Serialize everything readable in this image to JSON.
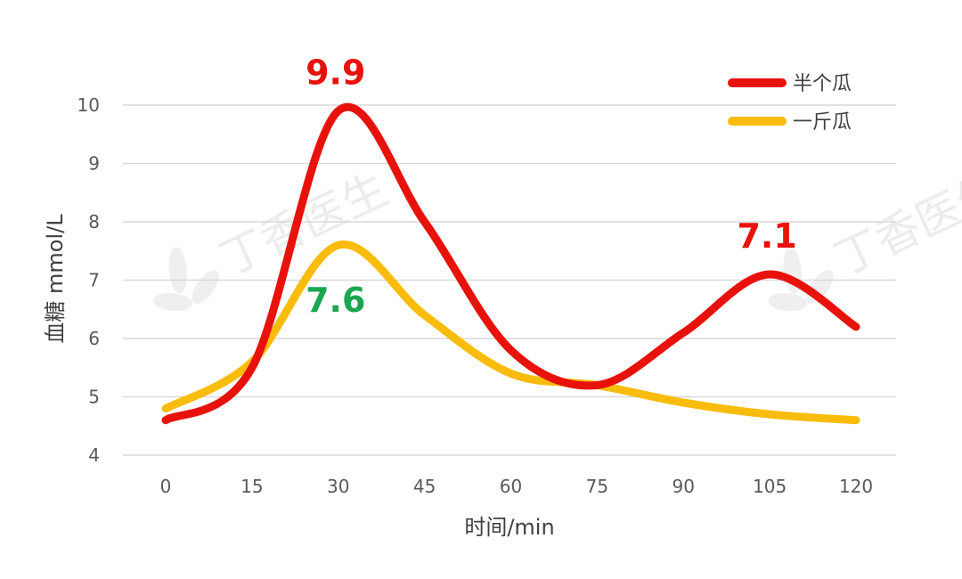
{
  "chart_data": {
    "type": "line",
    "xlabel": "时间/min",
    "ylabel": "血糖 mmol/L",
    "x": [
      0,
      15,
      30,
      45,
      60,
      75,
      90,
      105,
      120
    ],
    "xlim": [
      0,
      120
    ],
    "ylim": [
      4,
      10
    ],
    "yticks": [
      4,
      5,
      6,
      7,
      8,
      9,
      10
    ],
    "grid": true,
    "legend": "top-right",
    "series": [
      {
        "name": "半个瓜",
        "color": "#e8120c",
        "values": [
          4.6,
          5.5,
          9.9,
          8.0,
          5.8,
          5.2,
          6.1,
          7.1,
          6.2
        ]
      },
      {
        "name": "一斤瓜",
        "color": "#f9bc0a",
        "values": [
          4.8,
          5.6,
          7.6,
          6.4,
          5.4,
          5.2,
          4.9,
          4.7,
          4.6
        ]
      }
    ],
    "annotations": [
      {
        "text": "9.9",
        "x": 30,
        "y": 9.9,
        "color": "#e8120c"
      },
      {
        "text": "7.6",
        "x": 30,
        "y": 7.6,
        "color": "#1aa750"
      },
      {
        "text": "7.1",
        "x": 105,
        "y": 7.1,
        "color": "#e8120c"
      }
    ]
  },
  "watermark": "丁香医生"
}
